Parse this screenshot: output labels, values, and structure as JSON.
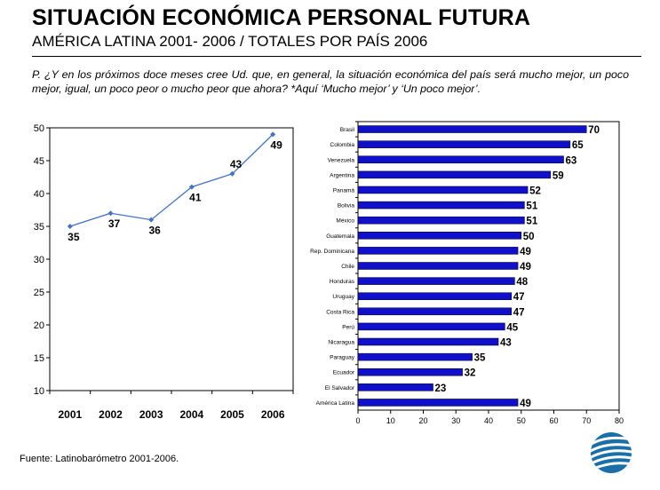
{
  "header": {
    "title": "SITUACIÓN ECONÓMICA PERSONAL FUTURA",
    "subtitle": "AMÉRICA LATINA 2001- 2006 / TOTALES POR PAÍS 2006"
  },
  "question": "P. ¿Y en los próximos doce meses cree Ud. que, en general, la situación económica del país será mucho mejor, un poco mejor, igual, un poco peor o mucho  peor que ahora? *Aquí ‘Mucho mejor’ y ‘Un poco mejor’.",
  "footer": {
    "source": "Fuente: Latinobarómetro 2001-2006."
  },
  "colors": {
    "line": "#4472c4",
    "bar": "#1010cc",
    "axis": "#000000"
  },
  "chart_data": [
    {
      "type": "line",
      "x": [
        "2001",
        "2002",
        "2003",
        "2004",
        "2005",
        "2006"
      ],
      "values": [
        35,
        37,
        36,
        41,
        43,
        49
      ],
      "ylim": [
        10,
        50
      ],
      "yticks": [
        10,
        15,
        20,
        25,
        30,
        35,
        40,
        45,
        50
      ],
      "data_labels": true,
      "grid": false
    },
    {
      "type": "bar",
      "orientation": "horizontal",
      "categories": [
        "Brasil",
        "Colombia",
        "Venezuela",
        "Argentina",
        "Panamá",
        "Bolivia",
        "México",
        "Guatemala",
        "Rep. Dominicana",
        "Chile",
        "Honduras",
        "Uruguay",
        "Costa Rica",
        "Perú",
        "Nicaragua",
        "Paraguay",
        "Ecuador",
        "El Salvador",
        "América Latina"
      ],
      "values": [
        70,
        65,
        63,
        59,
        52,
        51,
        51,
        50,
        49,
        49,
        48,
        47,
        47,
        45,
        43,
        35,
        32,
        23,
        49
      ],
      "xlim": [
        0,
        80
      ],
      "xticks": [
        0,
        10,
        20,
        30,
        40,
        50,
        60,
        70,
        80
      ],
      "data_labels": true,
      "grid": false
    }
  ]
}
